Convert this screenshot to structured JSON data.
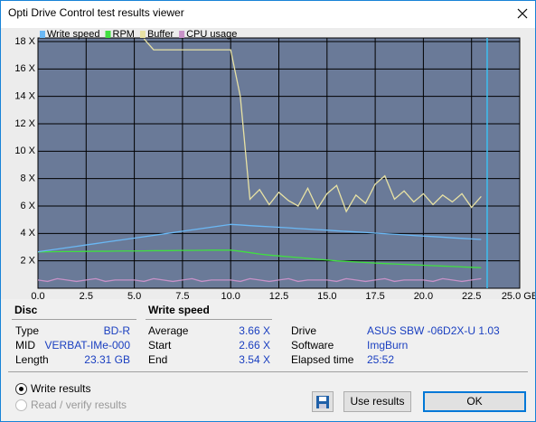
{
  "window": {
    "title": "Opti Drive Control test results viewer"
  },
  "chart_data": {
    "type": "line",
    "x": [
      0,
      0.5,
      1,
      1.5,
      2,
      2.5,
      3,
      3.5,
      4,
      4.5,
      5,
      5.5,
      6,
      6.5,
      7,
      7.5,
      8,
      8.5,
      9,
      9.5,
      10,
      10.5,
      11,
      11.5,
      12,
      12.5,
      13,
      13.5,
      14,
      14.5,
      15,
      15.5,
      16,
      16.5,
      17,
      17.5,
      18,
      18.5,
      19,
      19.5,
      20,
      20.5,
      21,
      21.5,
      22,
      22.5,
      23
    ],
    "series": [
      {
        "name": "Write speed",
        "color": "#6ab8f5",
        "values": [
          2.66,
          2.76,
          2.86,
          2.96,
          3.06,
          3.16,
          3.26,
          3.36,
          3.46,
          3.56,
          3.66,
          3.76,
          3.86,
          3.96,
          4.06,
          4.16,
          4.26,
          4.36,
          4.46,
          4.56,
          4.66,
          4.62,
          4.57,
          4.53,
          4.49,
          4.45,
          4.41,
          4.36,
          4.32,
          4.28,
          4.24,
          4.19,
          4.15,
          4.11,
          4.07,
          4.02,
          3.98,
          3.94,
          3.9,
          3.85,
          3.81,
          3.77,
          3.73,
          3.68,
          3.64,
          3.6,
          3.56
        ]
      },
      {
        "name": "RPM",
        "color": "#40e040",
        "values": [
          2.65,
          2.66,
          2.67,
          2.68,
          2.68,
          2.69,
          2.7,
          2.7,
          2.71,
          2.72,
          2.72,
          2.73,
          2.74,
          2.74,
          2.75,
          2.76,
          2.76,
          2.77,
          2.78,
          2.78,
          2.78,
          2.7,
          2.6,
          2.5,
          2.42,
          2.36,
          2.3,
          2.24,
          2.18,
          2.12,
          2.06,
          2.0,
          1.96,
          1.92,
          1.88,
          1.84,
          1.8,
          1.77,
          1.74,
          1.71,
          1.68,
          1.65,
          1.62,
          1.59,
          1.56,
          1.53,
          1.5
        ]
      },
      {
        "name": "Buffer",
        "color": "#e8e2a4",
        "values": [
          null,
          null,
          null,
          null,
          null,
          null,
          null,
          null,
          null,
          null,
          null,
          18.2,
          17.4,
          17.4,
          17.4,
          17.4,
          17.4,
          17.4,
          17.4,
          17.4,
          17.4,
          14,
          6.5,
          7.2,
          6.1,
          7.0,
          6.4,
          6.0,
          7.3,
          5.8,
          6.9,
          7.5,
          5.6,
          6.8,
          6.2,
          7.6,
          8.2,
          6.5,
          7.1,
          6.3,
          6.9,
          6.1,
          6.8,
          6.3,
          6.9,
          5.9,
          6.7
        ]
      },
      {
        "name": "CPU usage",
        "color": "#c892c8",
        "values": [
          0.6,
          0.5,
          0.7,
          0.6,
          0.5,
          0.6,
          0.7,
          0.5,
          0.6,
          0.6,
          0.6,
          0.5,
          0.7,
          0.6,
          0.5,
          0.6,
          0.7,
          0.5,
          0.6,
          0.6,
          0.6,
          0.5,
          0.7,
          0.6,
          0.5,
          0.6,
          0.7,
          0.5,
          0.6,
          0.6,
          0.6,
          0.5,
          0.7,
          0.6,
          0.5,
          0.6,
          0.7,
          0.5,
          0.6,
          0.6,
          0.6,
          0.5,
          0.7,
          0.6,
          0.5,
          0.6,
          0.7
        ]
      }
    ],
    "end_marker": 23.31,
    "end_marker_color": "#3cc0f0",
    "xlim": [
      0,
      25
    ],
    "ylim": [
      0,
      18
    ],
    "xticks": [
      {
        "value": 0,
        "label": "0.0"
      },
      {
        "value": 2.5,
        "label": "2.5"
      },
      {
        "value": 5,
        "label": "5.0"
      },
      {
        "value": 7.5,
        "label": "7.5"
      },
      {
        "value": 10,
        "label": "10.0"
      },
      {
        "value": 12.5,
        "label": "12.5"
      },
      {
        "value": 15,
        "label": "15.0"
      },
      {
        "value": 17.5,
        "label": "17.5"
      },
      {
        "value": 20,
        "label": "20.0"
      },
      {
        "value": 22.5,
        "label": "22.5"
      },
      {
        "value": 25,
        "label": "25.0 GB"
      }
    ],
    "yticks": [
      {
        "value": 2,
        "label": "2 X"
      },
      {
        "value": 4,
        "label": "4 X"
      },
      {
        "value": 6,
        "label": "6 X"
      },
      {
        "value": 8,
        "label": "8 X"
      },
      {
        "value": 10,
        "label": "10 X"
      },
      {
        "value": 12,
        "label": "12 X"
      },
      {
        "value": 14,
        "label": "14 X"
      },
      {
        "value": 16,
        "label": "16 X"
      },
      {
        "value": 18,
        "label": "18 X"
      }
    ],
    "grid": true
  },
  "disc": {
    "header": "Disc",
    "rows": [
      [
        "Type",
        "BD-R"
      ],
      [
        "MID",
        "VERBAT-IMe-000"
      ],
      [
        "Length",
        "23.31 GB"
      ]
    ]
  },
  "write_speed": {
    "header": "Write speed",
    "rows": [
      [
        "Average",
        "3.66 X"
      ],
      [
        "Start",
        "2.66 X"
      ],
      [
        "End",
        "3.54 X"
      ]
    ]
  },
  "info": {
    "rows": [
      [
        "Drive",
        "ASUS SBW -06D2X-U 1.03"
      ],
      [
        "Software",
        "ImgBurn"
      ],
      [
        "Elapsed time",
        "25:52"
      ]
    ]
  },
  "options": [
    "Write results",
    "Read / verify results"
  ],
  "buttons": [
    "Use results",
    "OK"
  ]
}
